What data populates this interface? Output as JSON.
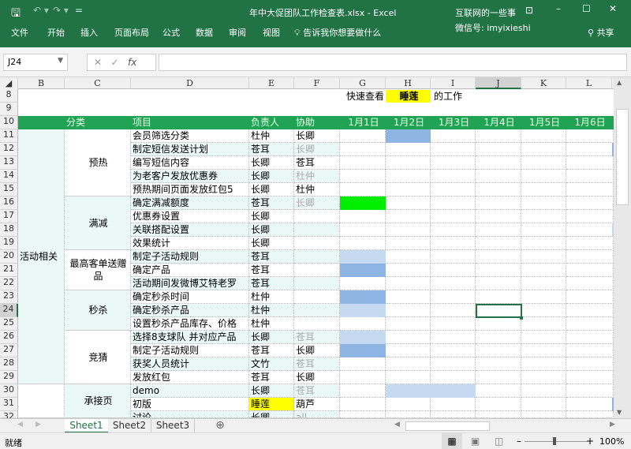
{
  "window": {
    "title": "年中大促团队工作检查表.xlsx  -  Excel",
    "watermark_line1": "互联网的一些事",
    "watermark_line2": "微信号: imyixieshi",
    "share": "共享"
  },
  "ribbon": {
    "tabs": [
      "文件",
      "开始",
      "插入",
      "页面布局",
      "公式",
      "数据",
      "审阅",
      "视图"
    ],
    "tell_me": "告诉我你想要做什么"
  },
  "formula_bar": {
    "name_box": "J24",
    "fx": "fx",
    "value": ""
  },
  "columns": [
    "B",
    "C",
    "D",
    "E",
    "F",
    "G",
    "H",
    "I",
    "J",
    "K",
    "L"
  ],
  "selected_cell": "J24",
  "quick_view": {
    "label": "快速查看",
    "name": "睡莲",
    "suffix": "的工作"
  },
  "header_row": {
    "category": "分类",
    "item": "项目",
    "owner": "负责人",
    "assist": "协助",
    "dates": [
      "1月1日",
      "1月2日",
      "1月3日",
      "1月4日",
      "1月5日",
      "1月6日"
    ]
  },
  "groups_b": [
    {
      "label": "活动相关",
      "from": 11,
      "to": 29
    },
    {
      "label": "",
      "from": 30,
      "to": 32
    }
  ],
  "groups_c": [
    {
      "label": "预热",
      "from": 11,
      "to": 15
    },
    {
      "label": "满减",
      "from": 16,
      "to": 19
    },
    {
      "label": "最高客单送赠品",
      "from": 20,
      "to": 22
    },
    {
      "label": "秒杀",
      "from": 23,
      "to": 25
    },
    {
      "label": "竞猜",
      "from": 26,
      "to": 29
    },
    {
      "label": "承接页",
      "from": 30,
      "to": 32
    }
  ],
  "rows": [
    {
      "n": 11,
      "item": "会员筛选分类",
      "owner": "杜仲",
      "assist": "长卿",
      "assist_grey": false
    },
    {
      "n": 12,
      "item": "制定短信发送计划",
      "owner": "苍耳",
      "assist": "长卿",
      "assist_grey": true
    },
    {
      "n": 13,
      "item": "编写短信内容",
      "owner": "长卿",
      "assist": "苍耳",
      "assist_grey": false
    },
    {
      "n": 14,
      "item": "为老客户发放优惠券",
      "owner": "长卿",
      "assist": "杜仲",
      "assist_grey": true
    },
    {
      "n": 15,
      "item": "预热期间页面发放红包5",
      "owner": "长卿",
      "assist": "杜仲",
      "assist_grey": false
    },
    {
      "n": 16,
      "item": "确定满减额度",
      "owner": "苍耳",
      "assist": "长卿",
      "assist_grey": true
    },
    {
      "n": 17,
      "item": "优惠券设置",
      "owner": "长卿",
      "assist": "",
      "assist_grey": false
    },
    {
      "n": 18,
      "item": "关联搭配设置",
      "owner": "长卿",
      "assist": "",
      "assist_grey": false
    },
    {
      "n": 19,
      "item": "效果统计",
      "owner": "长卿",
      "assist": "",
      "assist_grey": false
    },
    {
      "n": 20,
      "item": "制定子活动规则",
      "owner": "苍耳",
      "assist": "",
      "assist_grey": false
    },
    {
      "n": 21,
      "item": "确定产品",
      "owner": "苍耳",
      "assist": "",
      "assist_grey": false
    },
    {
      "n": 22,
      "item": "活动期间发微博艾特老罗",
      "owner": "苍耳",
      "assist": "",
      "assist_grey": false
    },
    {
      "n": 23,
      "item": "确定秒杀时间",
      "owner": "杜仲",
      "assist": "",
      "assist_grey": false
    },
    {
      "n": 24,
      "item": "确定秒杀产品",
      "owner": "杜仲",
      "assist": "",
      "assist_grey": false
    },
    {
      "n": 25,
      "item": "设置秒杀产品库存、价格",
      "owner": "杜仲",
      "assist": "",
      "assist_grey": false
    },
    {
      "n": 26,
      "item": "选择8支球队 并对应产品",
      "owner": "长卿",
      "assist": "苍耳",
      "assist_grey": true
    },
    {
      "n": 27,
      "item": "制定子活动规则",
      "owner": "苍耳",
      "assist": "长卿",
      "assist_grey": false
    },
    {
      "n": 28,
      "item": "获奖人员统计",
      "owner": "文竹",
      "assist": "苍耳",
      "assist_grey": true
    },
    {
      "n": 29,
      "item": "发放红包",
      "owner": "苍耳",
      "assist": "长卿",
      "assist_grey": false
    },
    {
      "n": 30,
      "item": "demo",
      "owner": "长卿",
      "assist": "苍耳",
      "assist_grey": true
    },
    {
      "n": 31,
      "item": "初版",
      "owner": "睡莲",
      "assist": "葫芦",
      "assist_grey": false,
      "owner_highlight": true
    },
    {
      "n": 32,
      "item": "讨论",
      "owner": "长卿",
      "assist": "all",
      "assist_grey": true
    }
  ],
  "fills": [
    {
      "cell": "H11",
      "color": "#8eb4e3"
    },
    {
      "cell": "L12",
      "color": "#8eb4e3"
    },
    {
      "cell": "G16",
      "color": "#00ee00"
    },
    {
      "cell": "L18",
      "color": "#c5d9f1"
    },
    {
      "cell": "G20",
      "color": "#c5d9f1"
    },
    {
      "cell": "G21",
      "color": "#8eb4e3"
    },
    {
      "cell": "G23",
      "color": "#8eb4e3"
    },
    {
      "cell": "G24",
      "color": "#c5d9f1"
    },
    {
      "cell": "G26",
      "color": "#c5d9f1"
    },
    {
      "cell": "G27",
      "color": "#8eb4e3"
    },
    {
      "cell": "H30",
      "color": "#c5d9f1"
    },
    {
      "cell": "I30",
      "color": "#c5d9f1"
    },
    {
      "cell": "L31",
      "color": "#8eb4e3"
    }
  ],
  "colors": {
    "header_green": "#21a355",
    "highlight_yellow": "#ffff00",
    "alt_row": "#eaf8f6"
  },
  "sheets": [
    "Sheet1",
    "Sheet2",
    "Sheet3"
  ],
  "active_sheet": "Sheet1",
  "status": {
    "ready": "就绪",
    "zoom": "100%"
  }
}
